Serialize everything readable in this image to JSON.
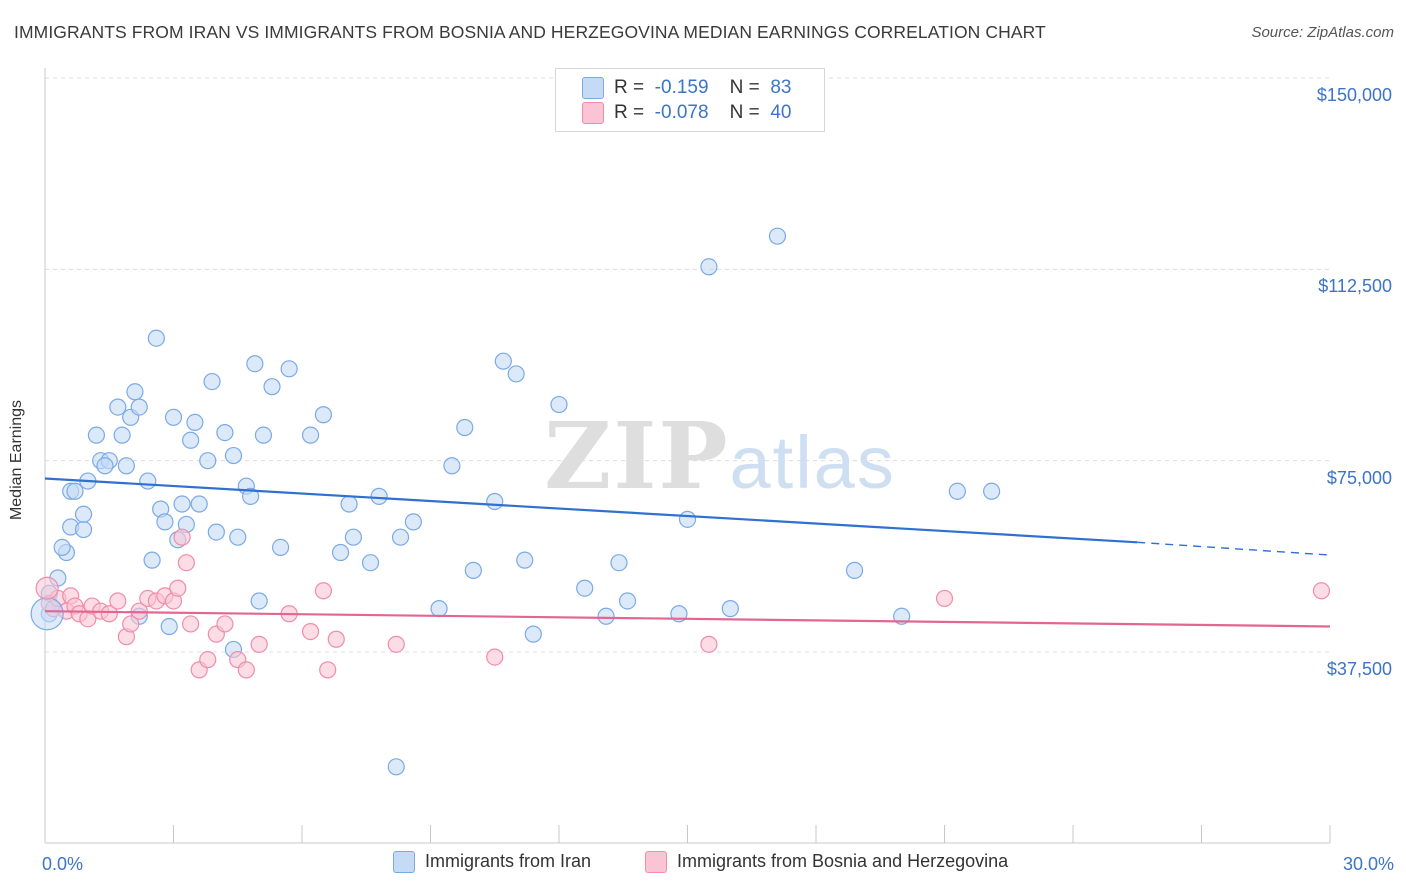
{
  "title": "IMMIGRANTS FROM IRAN VS IMMIGRANTS FROM BOSNIA AND HERZEGOVINA MEDIAN EARNINGS CORRELATION CHART",
  "source": "Source: ZipAtlas.com",
  "watermark": "ZIPatlas",
  "legend_top": {
    "series1": {
      "r_label": "R =",
      "r_value": "-0.159",
      "n_label": "N =",
      "n_value": "83"
    },
    "series2": {
      "r_label": "R =",
      "r_value": "-0.078",
      "n_label": "N =",
      "n_value": "40"
    }
  },
  "chart_data": {
    "type": "scatter",
    "title": "IMMIGRANTS FROM IRAN VS IMMIGRANTS FROM BOSNIA AND HERZEGOVINA MEDIAN EARNINGS CORRELATION CHART",
    "xlabel": "",
    "ylabel": "Median Earnings",
    "xlim": [
      0,
      30
    ],
    "ylim": [
      0,
      155000
    ],
    "y_ticks": [
      37500,
      75000,
      112500,
      150000
    ],
    "y_tick_labels": [
      "$37,500",
      "$75,000",
      "$112,500",
      "$150,000"
    ],
    "x_tick_labels": [
      "0.0%",
      "30.0%"
    ],
    "grid": true,
    "legend_position": "bottom",
    "series": [
      {
        "name": "Immigrants from Iran",
        "color": "#7aaae6",
        "fill": "#c5daf5",
        "line_color": "#3070d0",
        "trend": {
          "x0": 0,
          "y0": 71500,
          "x1": 25.5,
          "y1": 59000,
          "dash_x1": 30,
          "dash_y1": 56500
        },
        "points": [
          [
            0.1,
            45000
          ],
          [
            0.1,
            49000
          ],
          [
            0.3,
            52000
          ],
          [
            0.5,
            57000
          ],
          [
            0.6,
            69000
          ],
          [
            0.7,
            69000
          ],
          [
            0.6,
            62000
          ],
          [
            0.9,
            61500
          ],
          [
            0.9,
            64500
          ],
          [
            1.0,
            71000
          ],
          [
            1.2,
            80000
          ],
          [
            1.3,
            75000
          ],
          [
            1.5,
            75000
          ],
          [
            1.7,
            85500
          ],
          [
            1.8,
            80000
          ],
          [
            1.9,
            74000
          ],
          [
            2.0,
            83500
          ],
          [
            2.1,
            88500
          ],
          [
            2.2,
            85500
          ],
          [
            2.4,
            71000
          ],
          [
            2.5,
            55500
          ],
          [
            2.6,
            99000
          ],
          [
            2.7,
            65500
          ],
          [
            2.8,
            63000
          ],
          [
            2.9,
            42500
          ],
          [
            3.0,
            83500
          ],
          [
            3.1,
            59500
          ],
          [
            3.2,
            66500
          ],
          [
            3.3,
            62500
          ],
          [
            3.4,
            79000
          ],
          [
            3.5,
            82500
          ],
          [
            3.6,
            66500
          ],
          [
            3.8,
            75000
          ],
          [
            3.9,
            90500
          ],
          [
            4.0,
            61000
          ],
          [
            4.2,
            80500
          ],
          [
            4.4,
            76000
          ],
          [
            4.5,
            60000
          ],
          [
            4.7,
            70000
          ],
          [
            4.8,
            68000
          ],
          [
            4.9,
            94000
          ],
          [
            5.1,
            80000
          ],
          [
            5.3,
            89500
          ],
          [
            5.5,
            58000
          ],
          [
            5.7,
            93000
          ],
          [
            6.2,
            80000
          ],
          [
            6.5,
            84000
          ],
          [
            6.9,
            57000
          ],
          [
            7.1,
            66500
          ],
          [
            7.2,
            60000
          ],
          [
            7.6,
            55000
          ],
          [
            7.8,
            68000
          ],
          [
            8.2,
            15000
          ],
          [
            8.3,
            60000
          ],
          [
            8.6,
            63000
          ],
          [
            9.2,
            46000
          ],
          [
            9.5,
            74000
          ],
          [
            9.8,
            81500
          ],
          [
            10.0,
            53500
          ],
          [
            10.5,
            67000
          ],
          [
            10.7,
            94500
          ],
          [
            11.0,
            92000
          ],
          [
            11.2,
            55500
          ],
          [
            11.4,
            41000
          ],
          [
            12.0,
            86000
          ],
          [
            12.6,
            50000
          ],
          [
            13.1,
            44500
          ],
          [
            13.4,
            55000
          ],
          [
            13.6,
            47500
          ],
          [
            14.8,
            45000
          ],
          [
            15.0,
            63500
          ],
          [
            15.5,
            113000
          ],
          [
            16.0,
            46000
          ],
          [
            17.1,
            119000
          ],
          [
            18.9,
            53500
          ],
          [
            20.0,
            44500
          ],
          [
            21.3,
            69000
          ],
          [
            22.1,
            69000
          ],
          [
            4.4,
            38000
          ],
          [
            5.0,
            47500
          ],
          [
            2.2,
            44500
          ],
          [
            1.4,
            74000
          ],
          [
            0.4,
            58000
          ]
        ]
      },
      {
        "name": "Immigrants from Bosnia and Herzegovina",
        "color": "#f08cac",
        "fill": "#fac4d4",
        "line_color": "#e26690",
        "trend": {
          "x0": 0,
          "y0": 45500,
          "x1": 30,
          "y1": 42500
        },
        "points": [
          [
            0.1,
            47000
          ],
          [
            0.2,
            46000
          ],
          [
            0.3,
            48000
          ],
          [
            0.5,
            45500
          ],
          [
            0.6,
            48500
          ],
          [
            0.7,
            46500
          ],
          [
            0.8,
            45000
          ],
          [
            1.0,
            44000
          ],
          [
            1.1,
            46500
          ],
          [
            1.3,
            45500
          ],
          [
            1.5,
            45000
          ],
          [
            1.7,
            47500
          ],
          [
            1.9,
            40500
          ],
          [
            2.0,
            43000
          ],
          [
            2.2,
            45500
          ],
          [
            2.4,
            48000
          ],
          [
            2.6,
            47500
          ],
          [
            2.8,
            48500
          ],
          [
            3.0,
            47500
          ],
          [
            3.1,
            50000
          ],
          [
            3.2,
            60000
          ],
          [
            3.3,
            55000
          ],
          [
            3.4,
            43000
          ],
          [
            3.6,
            34000
          ],
          [
            3.8,
            36000
          ],
          [
            4.0,
            41000
          ],
          [
            4.2,
            43000
          ],
          [
            4.5,
            36000
          ],
          [
            4.7,
            34000
          ],
          [
            5.0,
            39000
          ],
          [
            5.7,
            45000
          ],
          [
            6.2,
            41500
          ],
          [
            6.5,
            49500
          ],
          [
            6.6,
            34000
          ],
          [
            6.8,
            40000
          ],
          [
            8.2,
            39000
          ],
          [
            10.5,
            36500
          ],
          [
            15.5,
            39000
          ],
          [
            21.0,
            48000
          ],
          [
            29.8,
            49500
          ]
        ]
      }
    ]
  },
  "legend_bottom": [
    {
      "label": "Immigrants from Iran"
    },
    {
      "label": "Immigrants from Bosnia and Herzegovina"
    }
  ]
}
